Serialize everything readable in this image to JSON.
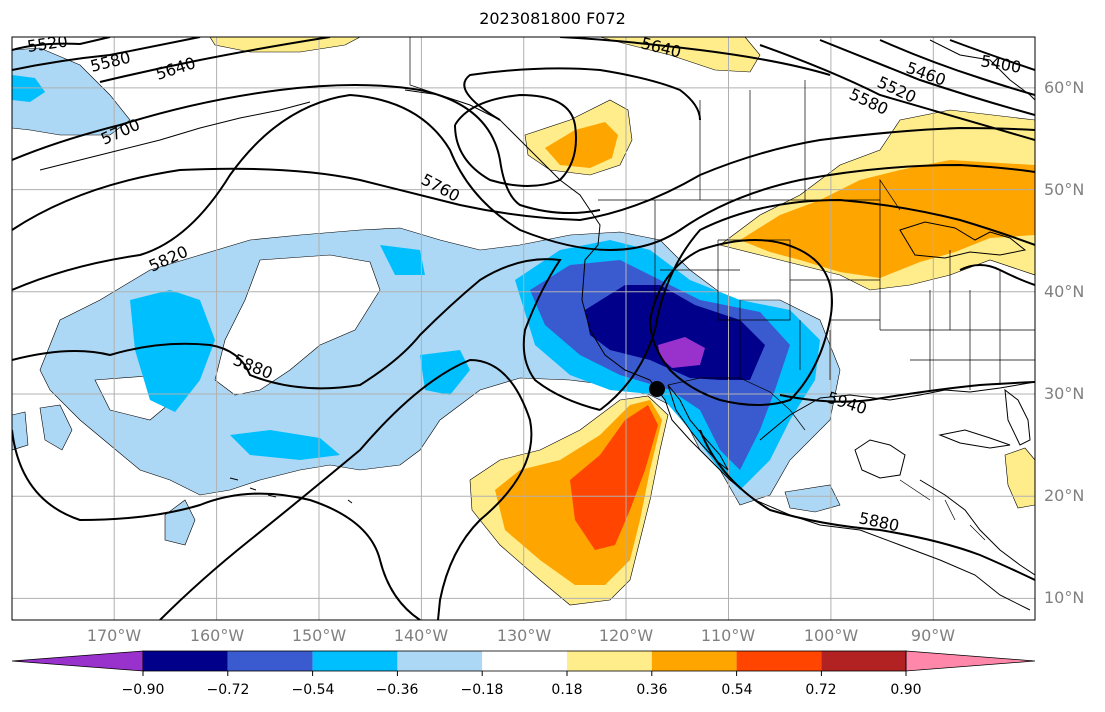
{
  "title": "2023081800 F072",
  "map": {
    "lat_labels": [
      "60°N",
      "50°N",
      "40°N",
      "30°N",
      "20°N",
      "10°N"
    ],
    "lon_labels": [
      "170°W",
      "160°W",
      "150°W",
      "140°W",
      "130°W",
      "120°W",
      "110°W",
      "100°W",
      "90°W"
    ],
    "contour_labels": [
      "5520",
      "5580",
      "5640",
      "5700",
      "5760",
      "5820",
      "5880",
      "5640",
      "5460",
      "5400",
      "5520",
      "5580",
      "5940",
      "5880"
    ],
    "shading_colors": {
      "lt_-0.90": "#9932cc",
      "-0.90_-0.72": "#00008b",
      "-0.72_-0.54": "#3a5bd0",
      "-0.54_-0.36": "#00bfff",
      "-0.36_-0.18": "#add8f5",
      "-0.18_0.18": "#ffffff",
      "0.18_0.36": "#ffec8b",
      "0.36_0.54": "#ffa500",
      "0.54_0.72": "#ff4500",
      "0.72_0.90": "#b22222",
      "gt_0.90": "#ff88aa"
    },
    "marker": "black-dot"
  },
  "colorbar": {
    "ticks": [
      "−0.90",
      "−0.72",
      "−0.54",
      "−0.36",
      "−0.18",
      "0.18",
      "0.36",
      "0.54",
      "0.72",
      "0.90"
    ],
    "colors": [
      "#9932cc",
      "#00008b",
      "#3a5bd0",
      "#00bfff",
      "#add8f5",
      "#ffffff",
      "#ffec8b",
      "#ffa500",
      "#ff4500",
      "#b22222",
      "#ff88aa"
    ]
  }
}
